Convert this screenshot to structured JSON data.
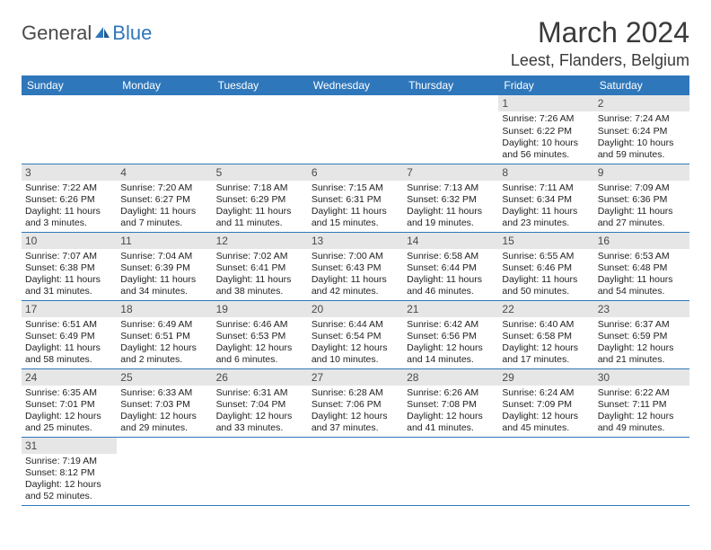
{
  "brand": {
    "general": "General",
    "blue": "Blue"
  },
  "title": "March 2024",
  "location": "Leest, Flanders, Belgium",
  "colors": {
    "header_bg": "#2f77bb",
    "header_text": "#ffffff",
    "daynum_bg": "#e6e6e6",
    "row_border": "#2f77bb",
    "body_text": "#222222",
    "title_text": "#3a3a3a"
  },
  "typography": {
    "title_fontsize": 32,
    "location_fontsize": 18,
    "header_fontsize": 12,
    "cell_fontsize": 10.5
  },
  "weekdays": [
    "Sunday",
    "Monday",
    "Tuesday",
    "Wednesday",
    "Thursday",
    "Friday",
    "Saturday"
  ],
  "weeks": [
    [
      null,
      null,
      null,
      null,
      null,
      {
        "n": "1",
        "sunrise": "Sunrise: 7:26 AM",
        "sunset": "Sunset: 6:22 PM",
        "daylight": "Daylight: 10 hours and 56 minutes."
      },
      {
        "n": "2",
        "sunrise": "Sunrise: 7:24 AM",
        "sunset": "Sunset: 6:24 PM",
        "daylight": "Daylight: 10 hours and 59 minutes."
      }
    ],
    [
      {
        "n": "3",
        "sunrise": "Sunrise: 7:22 AM",
        "sunset": "Sunset: 6:26 PM",
        "daylight": "Daylight: 11 hours and 3 minutes."
      },
      {
        "n": "4",
        "sunrise": "Sunrise: 7:20 AM",
        "sunset": "Sunset: 6:27 PM",
        "daylight": "Daylight: 11 hours and 7 minutes."
      },
      {
        "n": "5",
        "sunrise": "Sunrise: 7:18 AM",
        "sunset": "Sunset: 6:29 PM",
        "daylight": "Daylight: 11 hours and 11 minutes."
      },
      {
        "n": "6",
        "sunrise": "Sunrise: 7:15 AM",
        "sunset": "Sunset: 6:31 PM",
        "daylight": "Daylight: 11 hours and 15 minutes."
      },
      {
        "n": "7",
        "sunrise": "Sunrise: 7:13 AM",
        "sunset": "Sunset: 6:32 PM",
        "daylight": "Daylight: 11 hours and 19 minutes."
      },
      {
        "n": "8",
        "sunrise": "Sunrise: 7:11 AM",
        "sunset": "Sunset: 6:34 PM",
        "daylight": "Daylight: 11 hours and 23 minutes."
      },
      {
        "n": "9",
        "sunrise": "Sunrise: 7:09 AM",
        "sunset": "Sunset: 6:36 PM",
        "daylight": "Daylight: 11 hours and 27 minutes."
      }
    ],
    [
      {
        "n": "10",
        "sunrise": "Sunrise: 7:07 AM",
        "sunset": "Sunset: 6:38 PM",
        "daylight": "Daylight: 11 hours and 31 minutes."
      },
      {
        "n": "11",
        "sunrise": "Sunrise: 7:04 AM",
        "sunset": "Sunset: 6:39 PM",
        "daylight": "Daylight: 11 hours and 34 minutes."
      },
      {
        "n": "12",
        "sunrise": "Sunrise: 7:02 AM",
        "sunset": "Sunset: 6:41 PM",
        "daylight": "Daylight: 11 hours and 38 minutes."
      },
      {
        "n": "13",
        "sunrise": "Sunrise: 7:00 AM",
        "sunset": "Sunset: 6:43 PM",
        "daylight": "Daylight: 11 hours and 42 minutes."
      },
      {
        "n": "14",
        "sunrise": "Sunrise: 6:58 AM",
        "sunset": "Sunset: 6:44 PM",
        "daylight": "Daylight: 11 hours and 46 minutes."
      },
      {
        "n": "15",
        "sunrise": "Sunrise: 6:55 AM",
        "sunset": "Sunset: 6:46 PM",
        "daylight": "Daylight: 11 hours and 50 minutes."
      },
      {
        "n": "16",
        "sunrise": "Sunrise: 6:53 AM",
        "sunset": "Sunset: 6:48 PM",
        "daylight": "Daylight: 11 hours and 54 minutes."
      }
    ],
    [
      {
        "n": "17",
        "sunrise": "Sunrise: 6:51 AM",
        "sunset": "Sunset: 6:49 PM",
        "daylight": "Daylight: 11 hours and 58 minutes."
      },
      {
        "n": "18",
        "sunrise": "Sunrise: 6:49 AM",
        "sunset": "Sunset: 6:51 PM",
        "daylight": "Daylight: 12 hours and 2 minutes."
      },
      {
        "n": "19",
        "sunrise": "Sunrise: 6:46 AM",
        "sunset": "Sunset: 6:53 PM",
        "daylight": "Daylight: 12 hours and 6 minutes."
      },
      {
        "n": "20",
        "sunrise": "Sunrise: 6:44 AM",
        "sunset": "Sunset: 6:54 PM",
        "daylight": "Daylight: 12 hours and 10 minutes."
      },
      {
        "n": "21",
        "sunrise": "Sunrise: 6:42 AM",
        "sunset": "Sunset: 6:56 PM",
        "daylight": "Daylight: 12 hours and 14 minutes."
      },
      {
        "n": "22",
        "sunrise": "Sunrise: 6:40 AM",
        "sunset": "Sunset: 6:58 PM",
        "daylight": "Daylight: 12 hours and 17 minutes."
      },
      {
        "n": "23",
        "sunrise": "Sunrise: 6:37 AM",
        "sunset": "Sunset: 6:59 PM",
        "daylight": "Daylight: 12 hours and 21 minutes."
      }
    ],
    [
      {
        "n": "24",
        "sunrise": "Sunrise: 6:35 AM",
        "sunset": "Sunset: 7:01 PM",
        "daylight": "Daylight: 12 hours and 25 minutes."
      },
      {
        "n": "25",
        "sunrise": "Sunrise: 6:33 AM",
        "sunset": "Sunset: 7:03 PM",
        "daylight": "Daylight: 12 hours and 29 minutes."
      },
      {
        "n": "26",
        "sunrise": "Sunrise: 6:31 AM",
        "sunset": "Sunset: 7:04 PM",
        "daylight": "Daylight: 12 hours and 33 minutes."
      },
      {
        "n": "27",
        "sunrise": "Sunrise: 6:28 AM",
        "sunset": "Sunset: 7:06 PM",
        "daylight": "Daylight: 12 hours and 37 minutes."
      },
      {
        "n": "28",
        "sunrise": "Sunrise: 6:26 AM",
        "sunset": "Sunset: 7:08 PM",
        "daylight": "Daylight: 12 hours and 41 minutes."
      },
      {
        "n": "29",
        "sunrise": "Sunrise: 6:24 AM",
        "sunset": "Sunset: 7:09 PM",
        "daylight": "Daylight: 12 hours and 45 minutes."
      },
      {
        "n": "30",
        "sunrise": "Sunrise: 6:22 AM",
        "sunset": "Sunset: 7:11 PM",
        "daylight": "Daylight: 12 hours and 49 minutes."
      }
    ],
    [
      {
        "n": "31",
        "sunrise": "Sunrise: 7:19 AM",
        "sunset": "Sunset: 8:12 PM",
        "daylight": "Daylight: 12 hours and 52 minutes."
      },
      null,
      null,
      null,
      null,
      null,
      null
    ]
  ]
}
